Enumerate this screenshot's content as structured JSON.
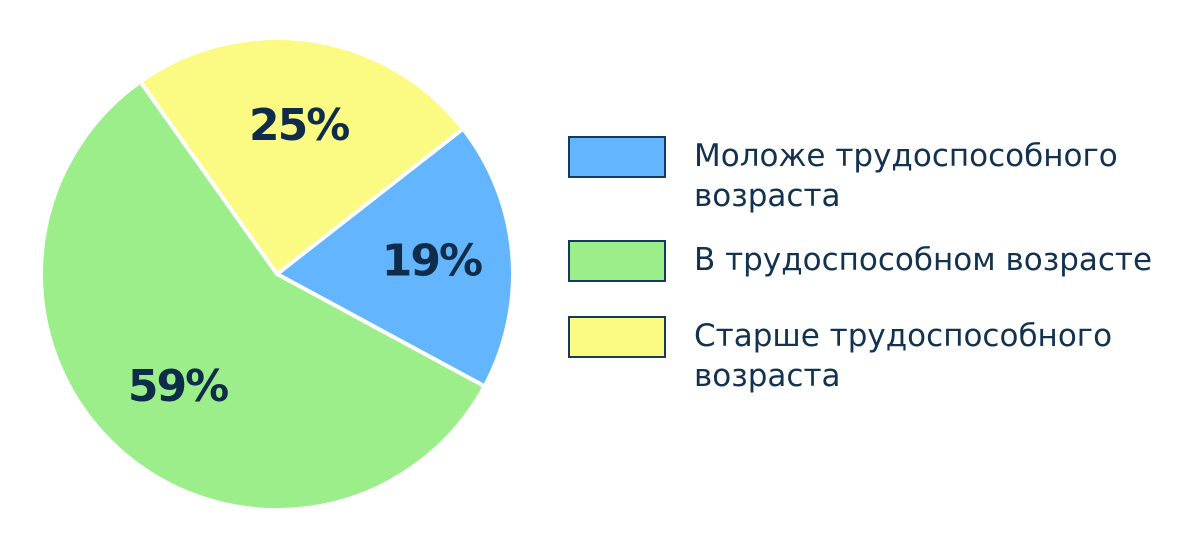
{
  "chart_data": {
    "type": "pie",
    "title": "",
    "slices": [
      {
        "label": "Моложе трудоспособного возраста",
        "value": 19,
        "display": "19%",
        "color": "#63b6fd"
      },
      {
        "label": "В трудоспособном возрасте",
        "value": 59,
        "display": "59%",
        "color": "#9bee89"
      },
      {
        "label": "Старше трудоспособного возраста",
        "value": 25,
        "display": "25%",
        "color": "#fbfb84"
      }
    ],
    "start_angle_deg": 38,
    "direction": "clockwise",
    "legend_position": "right",
    "border_color": "#ffffff",
    "label_color": "#0f2d4a"
  }
}
